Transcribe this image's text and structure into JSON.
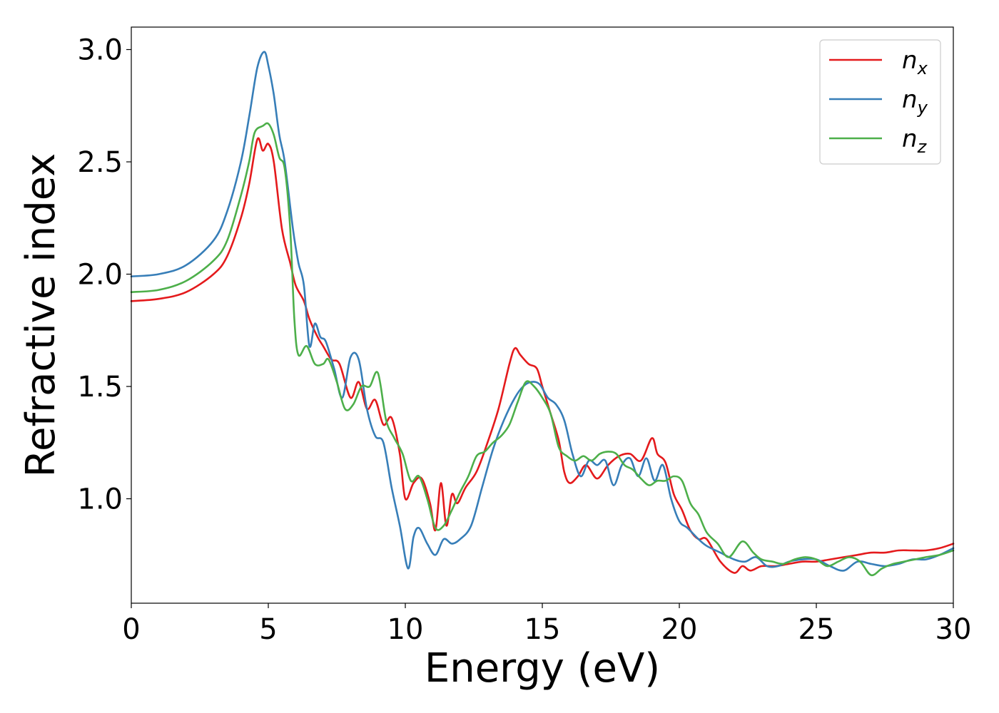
{
  "chart_data": {
    "type": "line",
    "title": "",
    "xlabel": "Energy (eV)",
    "ylabel": "Refractive index",
    "xlim": [
      0,
      30
    ],
    "ylim": [
      0.535,
      3.1
    ],
    "xticks": [
      0,
      5,
      10,
      15,
      20,
      25,
      30
    ],
    "yticks": [
      1.0,
      1.5,
      2.0,
      2.5,
      3.0
    ],
    "xtick_labels": [
      "0",
      "5",
      "10",
      "15",
      "20",
      "25",
      "30"
    ],
    "ytick_labels": [
      "1.0",
      "1.5",
      "2.0",
      "2.5",
      "3.0"
    ],
    "grid": false,
    "legend_position": "top-right",
    "series": [
      {
        "name": "n_x",
        "label_base": "n",
        "label_sub": "x",
        "color": "#e41a1c",
        "x": [
          0,
          1,
          2,
          3,
          3.5,
          4,
          4.3,
          4.6,
          4.8,
          5.0,
          5.2,
          5.5,
          5.8,
          6.0,
          6.3,
          6.5,
          6.8,
          7.0,
          7.3,
          7.6,
          8.0,
          8.3,
          8.6,
          8.9,
          9.2,
          9.5,
          9.8,
          10.0,
          10.3,
          10.6,
          10.9,
          11.1,
          11.3,
          11.5,
          11.7,
          11.9,
          12.2,
          12.6,
          13.0,
          13.4,
          13.8,
          14.0,
          14.2,
          14.5,
          14.8,
          15.0,
          15.3,
          15.6,
          15.8,
          16.0,
          16.3,
          16.6,
          17.0,
          17.4,
          17.8,
          18.2,
          18.6,
          19.0,
          19.2,
          19.5,
          19.8,
          20.1,
          20.4,
          20.7,
          21.0,
          21.5,
          22.0,
          22.3,
          22.6,
          23.0,
          23.5,
          24.0,
          24.5,
          25.0,
          25.5,
          26.0,
          26.5,
          27.0,
          27.5,
          28.0,
          28.5,
          29.0,
          29.5,
          30.0
        ],
        "y": [
          1.88,
          1.89,
          1.92,
          2.0,
          2.08,
          2.25,
          2.4,
          2.6,
          2.55,
          2.58,
          2.5,
          2.2,
          2.05,
          1.95,
          1.88,
          1.8,
          1.72,
          1.68,
          1.62,
          1.6,
          1.45,
          1.52,
          1.4,
          1.44,
          1.33,
          1.36,
          1.2,
          1.0,
          1.07,
          1.09,
          0.98,
          0.86,
          1.07,
          0.88,
          1.02,
          0.98,
          1.05,
          1.12,
          1.25,
          1.4,
          1.6,
          1.67,
          1.64,
          1.6,
          1.58,
          1.5,
          1.38,
          1.26,
          1.12,
          1.07,
          1.1,
          1.15,
          1.09,
          1.15,
          1.19,
          1.2,
          1.17,
          1.27,
          1.2,
          1.16,
          1.02,
          0.95,
          0.86,
          0.82,
          0.82,
          0.72,
          0.67,
          0.7,
          0.68,
          0.7,
          0.7,
          0.71,
          0.72,
          0.72,
          0.73,
          0.74,
          0.75,
          0.76,
          0.76,
          0.77,
          0.77,
          0.77,
          0.78,
          0.8
        ]
      },
      {
        "name": "n_y",
        "label_base": "n",
        "label_sub": "y",
        "color": "#377eb8",
        "x": [
          0,
          1,
          2,
          3,
          3.5,
          4,
          4.3,
          4.6,
          4.85,
          5.0,
          5.2,
          5.4,
          5.6,
          5.9,
          6.1,
          6.3,
          6.5,
          6.7,
          6.9,
          7.1,
          7.4,
          7.7,
          8.0,
          8.3,
          8.6,
          8.9,
          9.2,
          9.5,
          9.8,
          10.1,
          10.3,
          10.5,
          10.8,
          11.1,
          11.4,
          11.7,
          12.0,
          12.4,
          12.8,
          13.2,
          13.6,
          14.0,
          14.3,
          14.6,
          14.9,
          15.2,
          15.5,
          15.8,
          16.1,
          16.4,
          16.7,
          17.0,
          17.3,
          17.6,
          17.9,
          18.2,
          18.5,
          18.8,
          19.1,
          19.4,
          19.7,
          20.0,
          20.3,
          20.7,
          21.0,
          21.5,
          22.0,
          22.4,
          22.8,
          23.2,
          23.6,
          24.0,
          24.5,
          25.0,
          25.5,
          26.0,
          26.5,
          27.0,
          27.5,
          28.0,
          28.5,
          29.0,
          29.5,
          30.0
        ],
        "y": [
          1.99,
          2.0,
          2.04,
          2.15,
          2.28,
          2.5,
          2.7,
          2.92,
          2.99,
          2.93,
          2.8,
          2.62,
          2.5,
          2.2,
          2.05,
          1.95,
          1.68,
          1.78,
          1.72,
          1.7,
          1.58,
          1.45,
          1.63,
          1.62,
          1.4,
          1.28,
          1.25,
          1.05,
          0.88,
          0.69,
          0.83,
          0.87,
          0.8,
          0.75,
          0.82,
          0.8,
          0.82,
          0.88,
          1.05,
          1.22,
          1.35,
          1.45,
          1.5,
          1.52,
          1.51,
          1.45,
          1.42,
          1.35,
          1.2,
          1.1,
          1.17,
          1.15,
          1.17,
          1.06,
          1.15,
          1.18,
          1.1,
          1.18,
          1.08,
          1.15,
          1.0,
          0.9,
          0.87,
          0.82,
          0.79,
          0.76,
          0.73,
          0.72,
          0.74,
          0.7,
          0.7,
          0.72,
          0.73,
          0.73,
          0.7,
          0.68,
          0.72,
          0.71,
          0.7,
          0.71,
          0.73,
          0.73,
          0.75,
          0.78
        ]
      },
      {
        "name": "n_z",
        "label_base": "n",
        "label_sub": "z",
        "color": "#4daf4a",
        "x": [
          0,
          1,
          2,
          3,
          3.5,
          4,
          4.3,
          4.5,
          4.8,
          5.0,
          5.2,
          5.4,
          5.6,
          5.8,
          5.95,
          6.1,
          6.4,
          6.7,
          7.0,
          7.2,
          7.5,
          7.8,
          8.1,
          8.4,
          8.7,
          9.0,
          9.3,
          9.6,
          9.9,
          10.2,
          10.5,
          10.8,
          11.1,
          11.4,
          11.7,
          12.0,
          12.3,
          12.6,
          12.9,
          13.2,
          13.5,
          13.8,
          14.1,
          14.4,
          14.7,
          15.0,
          15.3,
          15.6,
          15.9,
          16.2,
          16.5,
          16.8,
          17.1,
          17.4,
          17.7,
          18.0,
          18.3,
          18.6,
          18.9,
          19.2,
          19.5,
          19.8,
          20.1,
          20.4,
          20.7,
          21.0,
          21.4,
          21.8,
          22.3,
          22.7,
          23.0,
          23.4,
          23.8,
          24.2,
          24.6,
          25.0,
          25.4,
          25.8,
          26.2,
          26.6,
          27.0,
          27.4,
          27.8,
          28.2,
          28.6,
          29.0,
          29.5,
          30.0
        ],
        "y": [
          1.92,
          1.93,
          1.97,
          2.06,
          2.15,
          2.35,
          2.5,
          2.63,
          2.66,
          2.67,
          2.62,
          2.52,
          2.47,
          2.2,
          1.8,
          1.64,
          1.68,
          1.6,
          1.6,
          1.62,
          1.52,
          1.4,
          1.42,
          1.5,
          1.5,
          1.56,
          1.35,
          1.27,
          1.2,
          1.08,
          1.1,
          1.0,
          0.87,
          0.88,
          0.95,
          1.03,
          1.1,
          1.19,
          1.21,
          1.25,
          1.28,
          1.33,
          1.43,
          1.52,
          1.5,
          1.45,
          1.38,
          1.23,
          1.19,
          1.17,
          1.19,
          1.17,
          1.2,
          1.21,
          1.2,
          1.15,
          1.13,
          1.09,
          1.06,
          1.08,
          1.08,
          1.1,
          1.08,
          0.98,
          0.93,
          0.85,
          0.8,
          0.74,
          0.81,
          0.76,
          0.73,
          0.72,
          0.71,
          0.73,
          0.74,
          0.73,
          0.7,
          0.72,
          0.74,
          0.72,
          0.66,
          0.69,
          0.71,
          0.72,
          0.73,
          0.74,
          0.75,
          0.77
        ]
      }
    ]
  }
}
